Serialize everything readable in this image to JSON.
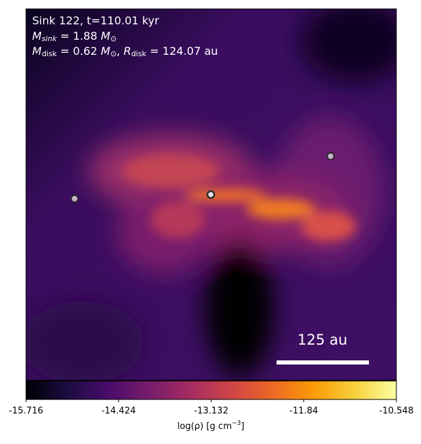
{
  "annotation": {
    "line1": "Sink 122, t=110.01 kyr",
    "line2": [
      "M",
      "sink",
      " = 1.88 ",
      "M",
      "⊙"
    ],
    "line3": [
      "M",
      "disk",
      " = 0.62 ",
      "M",
      "⊙",
      ", ",
      "R",
      "disk",
      " = 124.07 au"
    ],
    "scale_bar_label": "125 au"
  },
  "chart_data": {
    "type": "colorbar",
    "label": [
      "log(ρ) [g cm",
      "−3",
      "]"
    ],
    "clim": [
      -15.716,
      -10.548
    ],
    "ticks": [
      -15.716,
      -14.424,
      -13.132,
      -11.84,
      -10.548
    ],
    "colormap": [
      "#000004",
      "#1b0c41",
      "#4a0c6b",
      "#781c6d",
      "#a52c60",
      "#cf4446",
      "#ed6925",
      "#fb9b06",
      "#f7d13d",
      "#fcffa4"
    ]
  }
}
